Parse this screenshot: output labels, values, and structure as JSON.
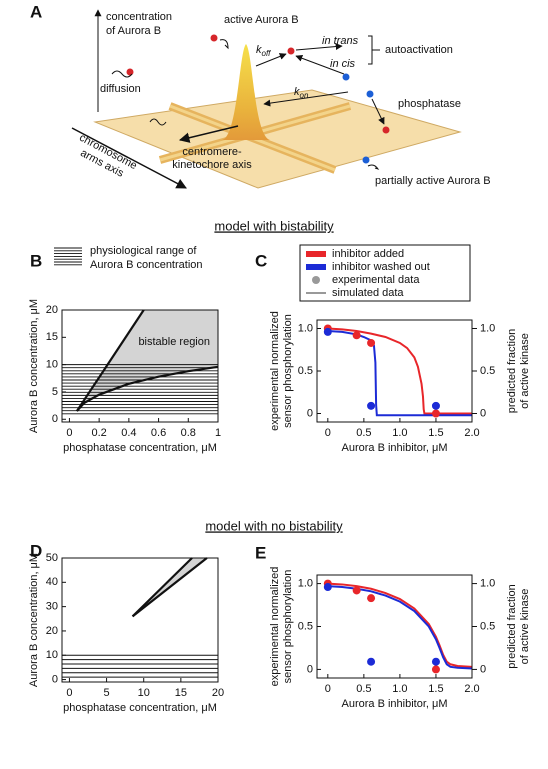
{
  "panel_a": {
    "label": "A",
    "y_axis": [
      "concentration",
      "of Aurora B"
    ],
    "diffusion": "diffusion",
    "active": "active Aurora B",
    "rate_off": {
      "symbol": "k",
      "subscript": "off"
    },
    "rate_on": {
      "symbol": "k",
      "subscript": "on"
    },
    "in_trans": "in trans",
    "in_cis": "in cis",
    "autoactivation": "autoactivation",
    "phosphatase": "phosphatase",
    "kinetochore_axis": [
      "centromere-",
      "kinetochore axis"
    ],
    "arms_axis": [
      "chromosome",
      "arms axis"
    ],
    "partially_active": "partially active Aurora B"
  },
  "section_titles": [
    "model with bistability",
    "model with no bistability"
  ],
  "chart_data": [
    {
      "type": "region",
      "panel": "B",
      "legend_label": [
        "physiological range of",
        "Aurora B concentration"
      ],
      "physiological_range": [
        1,
        10
      ],
      "region_label": "bistable region",
      "x_label": "phosphatase concentration, μM",
      "y_label": "Aurora B concentration, μM",
      "xlim": [
        -0.05,
        1
      ],
      "ylim": [
        -0.5,
        20
      ],
      "xticks": [
        0,
        0.2,
        0.4,
        0.6,
        0.8,
        1
      ],
      "yticks": [
        0,
        5,
        10,
        15,
        20
      ],
      "region_color": "#d4d4d4",
      "curves": [
        {
          "x": [
            0.05,
            0.5
          ],
          "y": [
            1.5,
            20
          ]
        },
        {
          "x": [
            0.05,
            0.1,
            0.2,
            0.4,
            0.6,
            0.8,
            1
          ],
          "y": [
            1.5,
            3,
            4.5,
            6.5,
            7.8,
            8.8,
            9.6
          ]
        }
      ]
    },
    {
      "type": "line",
      "panel": "C",
      "x_label": "Aurora B inhibitor, μM",
      "y_label": [
        "experimental normalized",
        "sensor phosphorylation"
      ],
      "y2_label": [
        "predicted fraction",
        "of active kinase"
      ],
      "legend": {
        "points": "experimental data",
        "lines": "simulated data",
        "color": "#999999"
      },
      "xlim": [
        -0.15,
        2
      ],
      "ylim": [
        -0.1,
        1.1
      ],
      "y2lim": [
        -0.1,
        1.1
      ],
      "xticks": [
        0,
        0.5,
        {
          "value": 1,
          "label": "1.0"
        },
        1.5,
        {
          "value": 2,
          "label": "2.0"
        }
      ],
      "yticks": [
        0,
        0.5,
        {
          "value": 1,
          "label": "1.0"
        }
      ],
      "y2ticks": [
        0,
        0.5,
        {
          "value": 1,
          "label": "1.0"
        }
      ],
      "series": [
        {
          "name": "inhibitor added",
          "color": "#e8262a",
          "x": [
            0,
            0.4,
            0.6,
            1.5
          ],
          "values": [
            1.0,
            0.92,
            0.83,
            0.0
          ],
          "sim_x": [
            0,
            0.2,
            0.4,
            0.6,
            0.8,
            1.0,
            1.1,
            1.2,
            1.25,
            1.3,
            1.32,
            1.33,
            1.34,
            1.5,
            2.0
          ],
          "sim_values": [
            1.0,
            0.99,
            0.97,
            0.94,
            0.9,
            0.83,
            0.77,
            0.66,
            0.55,
            0.35,
            0.2,
            0.05,
            0,
            0,
            0
          ]
        },
        {
          "name": "inhibitor washed out",
          "color": "#1c2bd6",
          "x": [
            0,
            0.6,
            1.5
          ],
          "values": [
            0.96,
            0.09,
            0.09
          ],
          "sim_x": [
            0,
            0.2,
            0.4,
            0.5,
            0.6,
            0.64,
            0.66,
            0.67,
            0.68,
            1.0,
            2.0
          ],
          "sim_values": [
            0.97,
            0.96,
            0.93,
            0.9,
            0.86,
            0.8,
            0.6,
            0.1,
            -0.02,
            -0.02,
            -0.02
          ]
        }
      ]
    },
    {
      "type": "region",
      "panel": "D",
      "physiological_range": [
        1,
        10
      ],
      "x_label": "phosphatase concentration, μM",
      "y_label": "Aurora B concentration, μM",
      "xlim": [
        -1,
        20
      ],
      "ylim": [
        -1,
        50
      ],
      "xticks": [
        0,
        5,
        10,
        15,
        20
      ],
      "yticks": [
        0,
        10,
        20,
        30,
        40,
        50
      ],
      "region_color": "#d4d4d4",
      "curves": [
        {
          "x": [
            8.5,
            16.5
          ],
          "y": [
            26,
            50
          ]
        },
        {
          "x": [
            8.5,
            18.5
          ],
          "y": [
            26,
            50
          ]
        }
      ]
    },
    {
      "type": "line",
      "panel": "E",
      "x_label": "Aurora B inhibitor, μM",
      "y_label": [
        "experimental normalized",
        "sensor phosphorylation"
      ],
      "y2_label": [
        "predicted fraction",
        "of active kinase"
      ],
      "xlim": [
        -0.15,
        2
      ],
      "ylim": [
        -0.1,
        1.1
      ],
      "y2lim": [
        -0.1,
        1.1
      ],
      "xticks": [
        0,
        0.5,
        {
          "value": 1,
          "label": "1.0"
        },
        1.5,
        {
          "value": 2,
          "label": "2.0"
        }
      ],
      "yticks": [
        0,
        0.5,
        {
          "value": 1,
          "label": "1.0"
        }
      ],
      "y2ticks": [
        0,
        0.5,
        {
          "value": 1,
          "label": "1.0"
        }
      ],
      "series": [
        {
          "color": "#e8262a",
          "x": [
            0,
            0.4,
            0.6,
            1.5
          ],
          "values": [
            1.0,
            0.92,
            0.83,
            0.0
          ],
          "sim_x": [
            0,
            0.2,
            0.4,
            0.6,
            0.8,
            1.0,
            1.2,
            1.4,
            1.5,
            1.55,
            1.6,
            1.65,
            1.7,
            1.8,
            2.0
          ],
          "sim_values": [
            1.0,
            0.99,
            0.97,
            0.94,
            0.89,
            0.82,
            0.71,
            0.53,
            0.38,
            0.28,
            0.17,
            0.09,
            0.06,
            0.04,
            0.03
          ]
        },
        {
          "color": "#1c2bd6",
          "x": [
            0,
            0.6,
            1.5
          ],
          "values": [
            0.96,
            0.09,
            0.09
          ],
          "sim_x": [
            0,
            0.2,
            0.4,
            0.6,
            0.8,
            1.0,
            1.2,
            1.4,
            1.5,
            1.55,
            1.6,
            1.65,
            1.7,
            1.8,
            2.0
          ],
          "sim_values": [
            0.97,
            0.96,
            0.94,
            0.91,
            0.86,
            0.79,
            0.68,
            0.5,
            0.35,
            0.25,
            0.14,
            0.06,
            0.03,
            0.02,
            0.01
          ]
        }
      ]
    }
  ]
}
